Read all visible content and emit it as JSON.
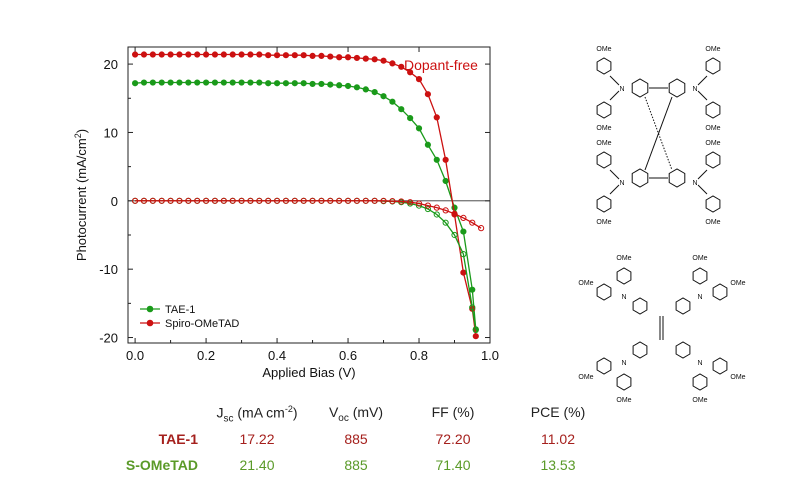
{
  "chart_data": {
    "type": "line",
    "title": "",
    "annotation": "Dopant-free",
    "xlabel": "Applied Bias (V)",
    "ylabel": "Photocurrent (mA/cm",
    "ylabel_sup": "2",
    "ylabel_close": ")",
    "xlim": [
      -0.02,
      1.0
    ],
    "ylim": [
      -20.8,
      22.5
    ],
    "xticks": [
      "0.0",
      "0.2",
      "0.4",
      "0.6",
      "0.8",
      "1.0"
    ],
    "xtick_values": [
      0.0,
      0.2,
      0.4,
      0.6,
      0.8,
      1.0
    ],
    "yticks": [
      "-20",
      "-10",
      "0",
      "10",
      "20"
    ],
    "ytick_values": [
      -20,
      -10,
      0,
      10,
      20
    ],
    "legend_position": "bottom-left",
    "series": [
      {
        "name": "TAE-1",
        "color": "#1a9a1a",
        "condition": "light",
        "x": [
          0.0,
          0.025,
          0.05,
          0.075,
          0.1,
          0.125,
          0.15,
          0.175,
          0.2,
          0.225,
          0.25,
          0.275,
          0.3,
          0.325,
          0.35,
          0.375,
          0.4,
          0.425,
          0.45,
          0.475,
          0.5,
          0.525,
          0.55,
          0.575,
          0.6,
          0.625,
          0.65,
          0.675,
          0.7,
          0.725,
          0.75,
          0.775,
          0.8,
          0.825,
          0.85,
          0.875,
          0.9,
          0.925,
          0.95,
          0.96
        ],
        "y": [
          17.2,
          17.3,
          17.3,
          17.3,
          17.3,
          17.3,
          17.3,
          17.3,
          17.3,
          17.3,
          17.3,
          17.3,
          17.3,
          17.3,
          17.3,
          17.2,
          17.2,
          17.2,
          17.2,
          17.2,
          17.1,
          17.1,
          17.0,
          16.9,
          16.8,
          16.6,
          16.3,
          15.9,
          15.3,
          14.5,
          13.4,
          12.1,
          10.6,
          8.2,
          6.0,
          2.9,
          -1.0,
          -4.5,
          -13.0,
          -18.8
        ]
      },
      {
        "name": "Spiro-OMeTAD",
        "color": "#cc1111",
        "condition": "light",
        "x": [
          0.0,
          0.025,
          0.05,
          0.075,
          0.1,
          0.125,
          0.15,
          0.175,
          0.2,
          0.225,
          0.25,
          0.275,
          0.3,
          0.325,
          0.35,
          0.375,
          0.4,
          0.425,
          0.45,
          0.475,
          0.5,
          0.525,
          0.55,
          0.575,
          0.6,
          0.625,
          0.65,
          0.675,
          0.7,
          0.725,
          0.75,
          0.775,
          0.8,
          0.825,
          0.85,
          0.875,
          0.9,
          0.925,
          0.95,
          0.96
        ],
        "y": [
          21.4,
          21.4,
          21.4,
          21.4,
          21.4,
          21.4,
          21.4,
          21.4,
          21.4,
          21.4,
          21.4,
          21.4,
          21.4,
          21.4,
          21.4,
          21.3,
          21.3,
          21.3,
          21.3,
          21.3,
          21.2,
          21.2,
          21.1,
          21.0,
          21.0,
          20.9,
          20.8,
          20.7,
          20.5,
          20.1,
          19.6,
          18.8,
          17.8,
          15.6,
          12.2,
          6.0,
          -2.0,
          -10.5,
          -15.8,
          -19.8
        ]
      },
      {
        "name": "TAE-1 dark",
        "color": "#1a9a1a",
        "condition": "dark",
        "x": [
          0.0,
          0.025,
          0.05,
          0.075,
          0.1,
          0.125,
          0.15,
          0.175,
          0.2,
          0.225,
          0.25,
          0.275,
          0.3,
          0.325,
          0.35,
          0.375,
          0.4,
          0.425,
          0.45,
          0.475,
          0.5,
          0.525,
          0.55,
          0.575,
          0.6,
          0.625,
          0.65,
          0.675,
          0.7,
          0.725,
          0.75,
          0.775,
          0.8,
          0.825,
          0.85,
          0.875,
          0.9,
          0.925,
          0.95,
          0.96
        ],
        "y": [
          0,
          0,
          0,
          0,
          0,
          0,
          0,
          0,
          0,
          0,
          0,
          0,
          0,
          0,
          0,
          0,
          0,
          0,
          0,
          0,
          0,
          0,
          0,
          0,
          0,
          0,
          0,
          0,
          -0.05,
          -0.1,
          -0.2,
          -0.4,
          -0.7,
          -1.2,
          -2.0,
          -3.2,
          -5.0,
          -7.8,
          -15.6,
          -18.9
        ]
      },
      {
        "name": "Spiro-OMeTAD dark",
        "color": "#cc1111",
        "condition": "dark",
        "x": [
          0.0,
          0.025,
          0.05,
          0.075,
          0.1,
          0.125,
          0.15,
          0.175,
          0.2,
          0.225,
          0.25,
          0.275,
          0.3,
          0.325,
          0.35,
          0.375,
          0.4,
          0.425,
          0.45,
          0.475,
          0.5,
          0.525,
          0.55,
          0.575,
          0.6,
          0.625,
          0.65,
          0.675,
          0.7,
          0.725,
          0.75,
          0.775,
          0.8,
          0.825,
          0.85,
          0.875,
          0.9,
          0.925,
          0.95,
          0.975
        ],
        "y": [
          0,
          0,
          0,
          0,
          0,
          0,
          0,
          0,
          0,
          0,
          0,
          0,
          0,
          0,
          0,
          0,
          0,
          0,
          0,
          0,
          0,
          0,
          0,
          0,
          0,
          0,
          0,
          0,
          0,
          -0.05,
          -0.1,
          -0.2,
          -0.4,
          -0.7,
          -1.0,
          -1.4,
          -1.9,
          -2.5,
          -3.2,
          -4.0
        ]
      }
    ]
  },
  "table": {
    "headers": [
      {
        "main": "J",
        "sub": "sc",
        "unit": " (mA cm",
        "sup": "-2",
        "close": ")"
      },
      {
        "main": "V",
        "sub": "oc",
        "unit": " (mV)",
        "sup": "",
        "close": ""
      },
      {
        "main": "FF",
        "sub": "",
        "unit": " (%)",
        "sup": "",
        "close": ""
      },
      {
        "main": "PCE",
        "sub": "",
        "unit": " (%)",
        "sup": "",
        "close": ""
      }
    ],
    "rows": [
      {
        "label": "TAE-1",
        "label_color": "#a5201d",
        "values_color": "#a5201d",
        "values": [
          "17.22",
          "885",
          "72.20",
          "11.02"
        ]
      },
      {
        "label": "S-OMeTAD",
        "label_color": "#5a9a28",
        "values_color": "#5a9a28",
        "values": [
          "21.40",
          "885",
          "71.40",
          "13.53"
        ]
      }
    ]
  },
  "molecules": {
    "label_ome": "OMe",
    "label_n": "N"
  }
}
